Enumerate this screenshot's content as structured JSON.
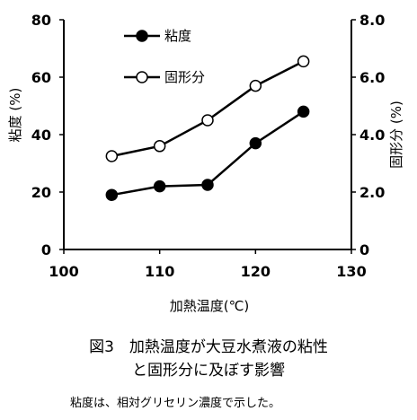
{
  "chart_data": {
    "type": "line",
    "x": [
      105,
      110,
      115,
      120,
      125
    ],
    "xlabel": "加熱温度(℃)",
    "xlim": [
      100,
      130
    ],
    "xticks": [
      "100",
      "110",
      "120",
      "130"
    ],
    "ylabel_left": "粘度 (%)",
    "ylim_left": [
      0,
      80
    ],
    "yticks_left": [
      "0",
      "20",
      "40",
      "60",
      "80"
    ],
    "ylabel_right": "固形分 (%)",
    "ylim_right": [
      0,
      8
    ],
    "yticks_right": [
      "0",
      "2.0",
      "4.0",
      "6.0",
      "8.0"
    ],
    "series": [
      {
        "name": "粘度",
        "axis": "left",
        "marker": "filled",
        "values": [
          19,
          22,
          22.5,
          37,
          48
        ]
      },
      {
        "name": "固形分",
        "axis": "right",
        "marker": "open",
        "values": [
          3.25,
          3.6,
          4.5,
          5.7,
          6.55
        ]
      }
    ],
    "grid": false,
    "legend": "top-center"
  },
  "caption": {
    "line1": "図3　加熱温度が大豆水煮液の粘性",
    "line2": "と固形分に及ぼす影響"
  },
  "note": "粘度は、相対グリセリン濃度で示した。"
}
